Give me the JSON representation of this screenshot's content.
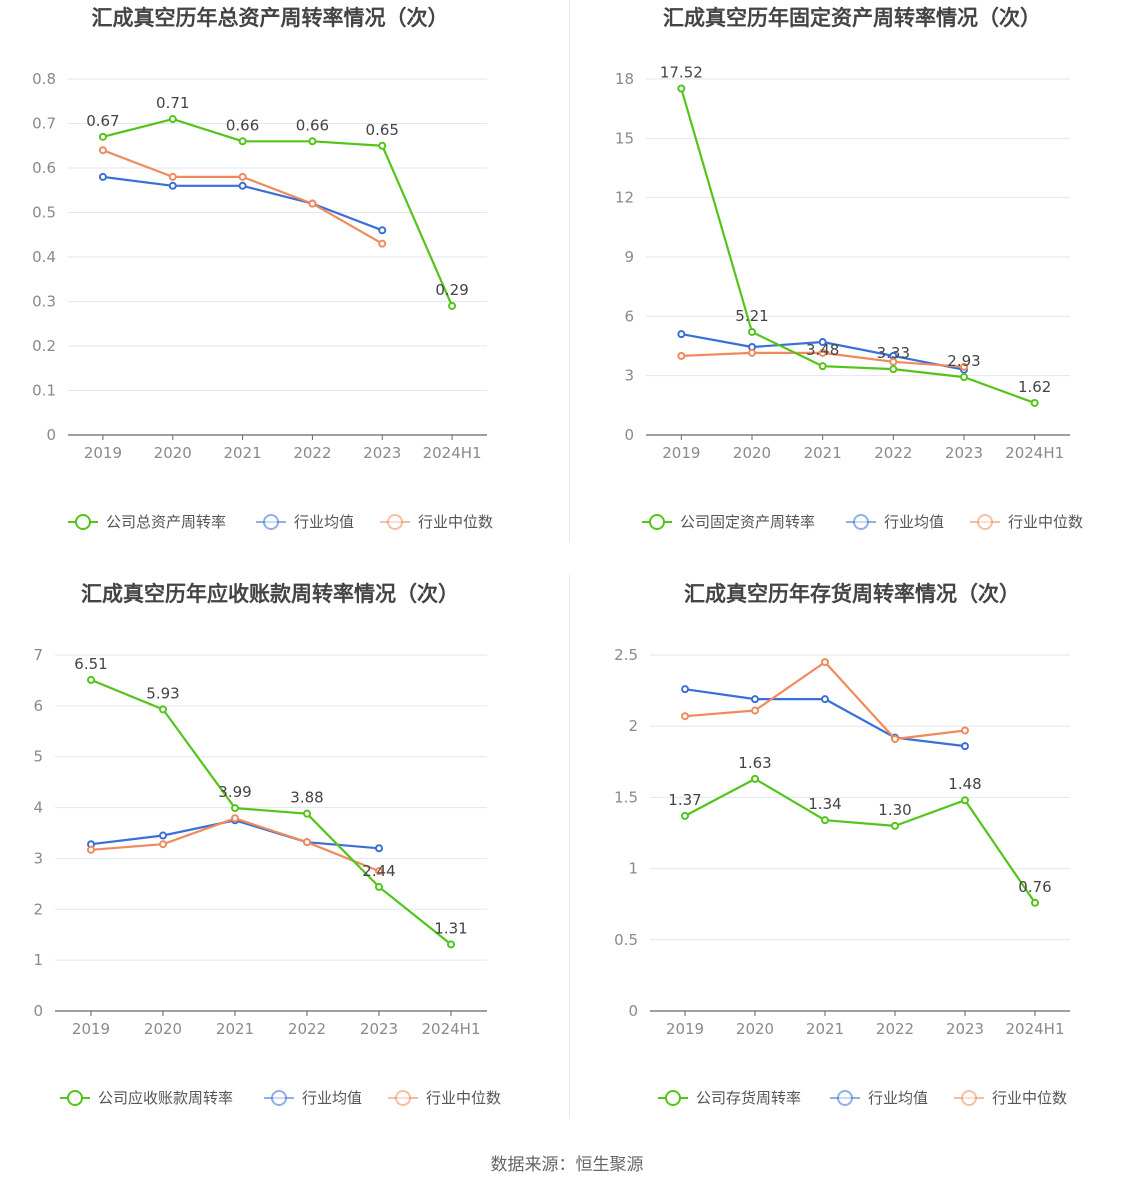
{
  "colors": {
    "company": "#52c41a",
    "industry_avg": "#3a6fd8",
    "industry_median": "#f08a5d",
    "grid": "#e3e6ef",
    "axis": "#666666",
    "label_text": "#444444",
    "tick_text": "#8a8a8a"
  },
  "source_label": "数据来源：恒生聚源",
  "chart_data": [
    {
      "type": "line",
      "title": "汇成真空历年总资产周转率情况（次）",
      "categories": [
        "2019",
        "2020",
        "2021",
        "2022",
        "2023",
        "2024H1"
      ],
      "ylim": [
        0,
        0.8
      ],
      "yticks": [
        "0",
        "0.1",
        "0.2",
        "0.3",
        "0.4",
        "0.5",
        "0.6",
        "0.7",
        "0.8"
      ],
      "ytick_values": [
        0,
        0.1,
        0.2,
        0.3,
        0.4,
        0.5,
        0.6,
        0.7,
        0.8
      ],
      "series": [
        {
          "name": "公司总资产周转率",
          "color": "#52c41a",
          "labeled": true,
          "values": [
            0.67,
            0.71,
            0.66,
            0.66,
            0.65,
            0.29
          ],
          "labels": [
            "0.67",
            "0.71",
            "0.66",
            "0.66",
            "0.65",
            "0.29"
          ]
        },
        {
          "name": "行业均值",
          "color": "#3a6fd8",
          "labeled": false,
          "values": [
            0.58,
            0.56,
            0.56,
            0.52,
            0.46,
            null
          ]
        },
        {
          "name": "行业中位数",
          "color": "#f08a5d",
          "labeled": false,
          "values": [
            0.64,
            0.58,
            0.58,
            0.52,
            0.43,
            null
          ]
        }
      ]
    },
    {
      "type": "line",
      "title": "汇成真空历年固定资产周转率情况（次）",
      "categories": [
        "2019",
        "2020",
        "2021",
        "2022",
        "2023",
        "2024H1"
      ],
      "ylim": [
        0,
        18
      ],
      "yticks": [
        "0",
        "3",
        "6",
        "9",
        "12",
        "15",
        "18"
      ],
      "ytick_values": [
        0,
        3,
        6,
        9,
        12,
        15,
        18
      ],
      "series": [
        {
          "name": "公司固定资产周转率",
          "color": "#52c41a",
          "labeled": true,
          "values": [
            17.52,
            5.21,
            3.48,
            3.33,
            2.93,
            1.62
          ],
          "labels": [
            "17.52",
            "5.21",
            "3.48",
            "3.33",
            "2.93",
            "1.62"
          ]
        },
        {
          "name": "行业均值",
          "color": "#3a6fd8",
          "labeled": false,
          "values": [
            5.1,
            4.45,
            4.7,
            4.0,
            3.3,
            null
          ]
        },
        {
          "name": "行业中位数",
          "color": "#f08a5d",
          "labeled": false,
          "values": [
            4.0,
            4.15,
            4.15,
            3.7,
            3.45,
            null
          ]
        }
      ]
    },
    {
      "type": "line",
      "title": "汇成真空历年应收账款周转率情况（次）",
      "categories": [
        "2019",
        "2020",
        "2021",
        "2022",
        "2023",
        "2024H1"
      ],
      "ylim": [
        0,
        7
      ],
      "yticks": [
        "0",
        "1",
        "2",
        "3",
        "4",
        "5",
        "6",
        "7"
      ],
      "ytick_values": [
        0,
        1,
        2,
        3,
        4,
        5,
        6,
        7
      ],
      "series": [
        {
          "name": "公司应收账款周转率",
          "color": "#52c41a",
          "labeled": true,
          "values": [
            6.51,
            5.93,
            3.99,
            3.88,
            2.44,
            1.31
          ],
          "labels": [
            "6.51",
            "5.93",
            "3.99",
            "3.88",
            "2.44",
            "1.31"
          ]
        },
        {
          "name": "行业均值",
          "color": "#3a6fd8",
          "labeled": false,
          "values": [
            3.28,
            3.45,
            3.75,
            3.32,
            3.2,
            null
          ]
        },
        {
          "name": "行业中位数",
          "color": "#f08a5d",
          "labeled": false,
          "values": [
            3.17,
            3.28,
            3.79,
            3.32,
            2.75,
            null
          ]
        }
      ]
    },
    {
      "type": "line",
      "title": "汇成真空历年存货周转率情况（次）",
      "categories": [
        "2019",
        "2020",
        "2021",
        "2022",
        "2023",
        "2024H1"
      ],
      "ylim": [
        0,
        2.5
      ],
      "yticks": [
        "0",
        "0.5",
        "1",
        "1.5",
        "2",
        "2.5"
      ],
      "ytick_values": [
        0,
        0.5,
        1,
        1.5,
        2,
        2.5
      ],
      "series": [
        {
          "name": "公司存货周转率",
          "color": "#52c41a",
          "labeled": true,
          "values": [
            1.37,
            1.63,
            1.34,
            1.3,
            1.48,
            0.76
          ],
          "labels": [
            "1.37",
            "1.63",
            "1.34",
            "1.30",
            "1.48",
            "0.76"
          ]
        },
        {
          "name": "行业均值",
          "color": "#3a6fd8",
          "labeled": false,
          "values": [
            2.26,
            2.19,
            2.19,
            1.92,
            1.86,
            null
          ]
        },
        {
          "name": "行业中位数",
          "color": "#f08a5d",
          "labeled": false,
          "values": [
            2.07,
            2.11,
            2.45,
            1.91,
            1.97,
            null
          ]
        }
      ]
    }
  ]
}
